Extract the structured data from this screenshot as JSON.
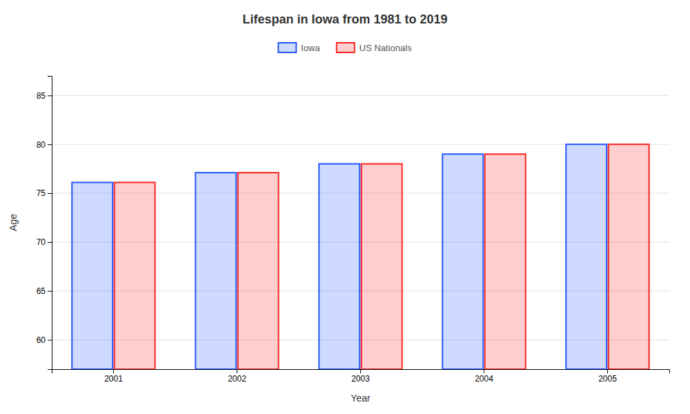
{
  "chart_data": {
    "type": "bar",
    "title": "Lifespan in Iowa from 1981 to 2019",
    "xlabel": "Year",
    "ylabel": "Age",
    "categories": [
      "2001",
      "2002",
      "2003",
      "2004",
      "2005"
    ],
    "series": [
      {
        "name": "Iowa",
        "color": "#2255ff",
        "values": [
          76.1,
          77.1,
          78.0,
          79.0,
          80.0
        ]
      },
      {
        "name": "US Nationals",
        "color": "#ff2222",
        "values": [
          76.1,
          77.1,
          78.0,
          79.0,
          80.0
        ]
      }
    ],
    "ylim": [
      57,
      87
    ],
    "yticks": [
      60,
      65,
      70,
      75,
      80,
      85
    ],
    "grid": true,
    "legend": "top"
  }
}
